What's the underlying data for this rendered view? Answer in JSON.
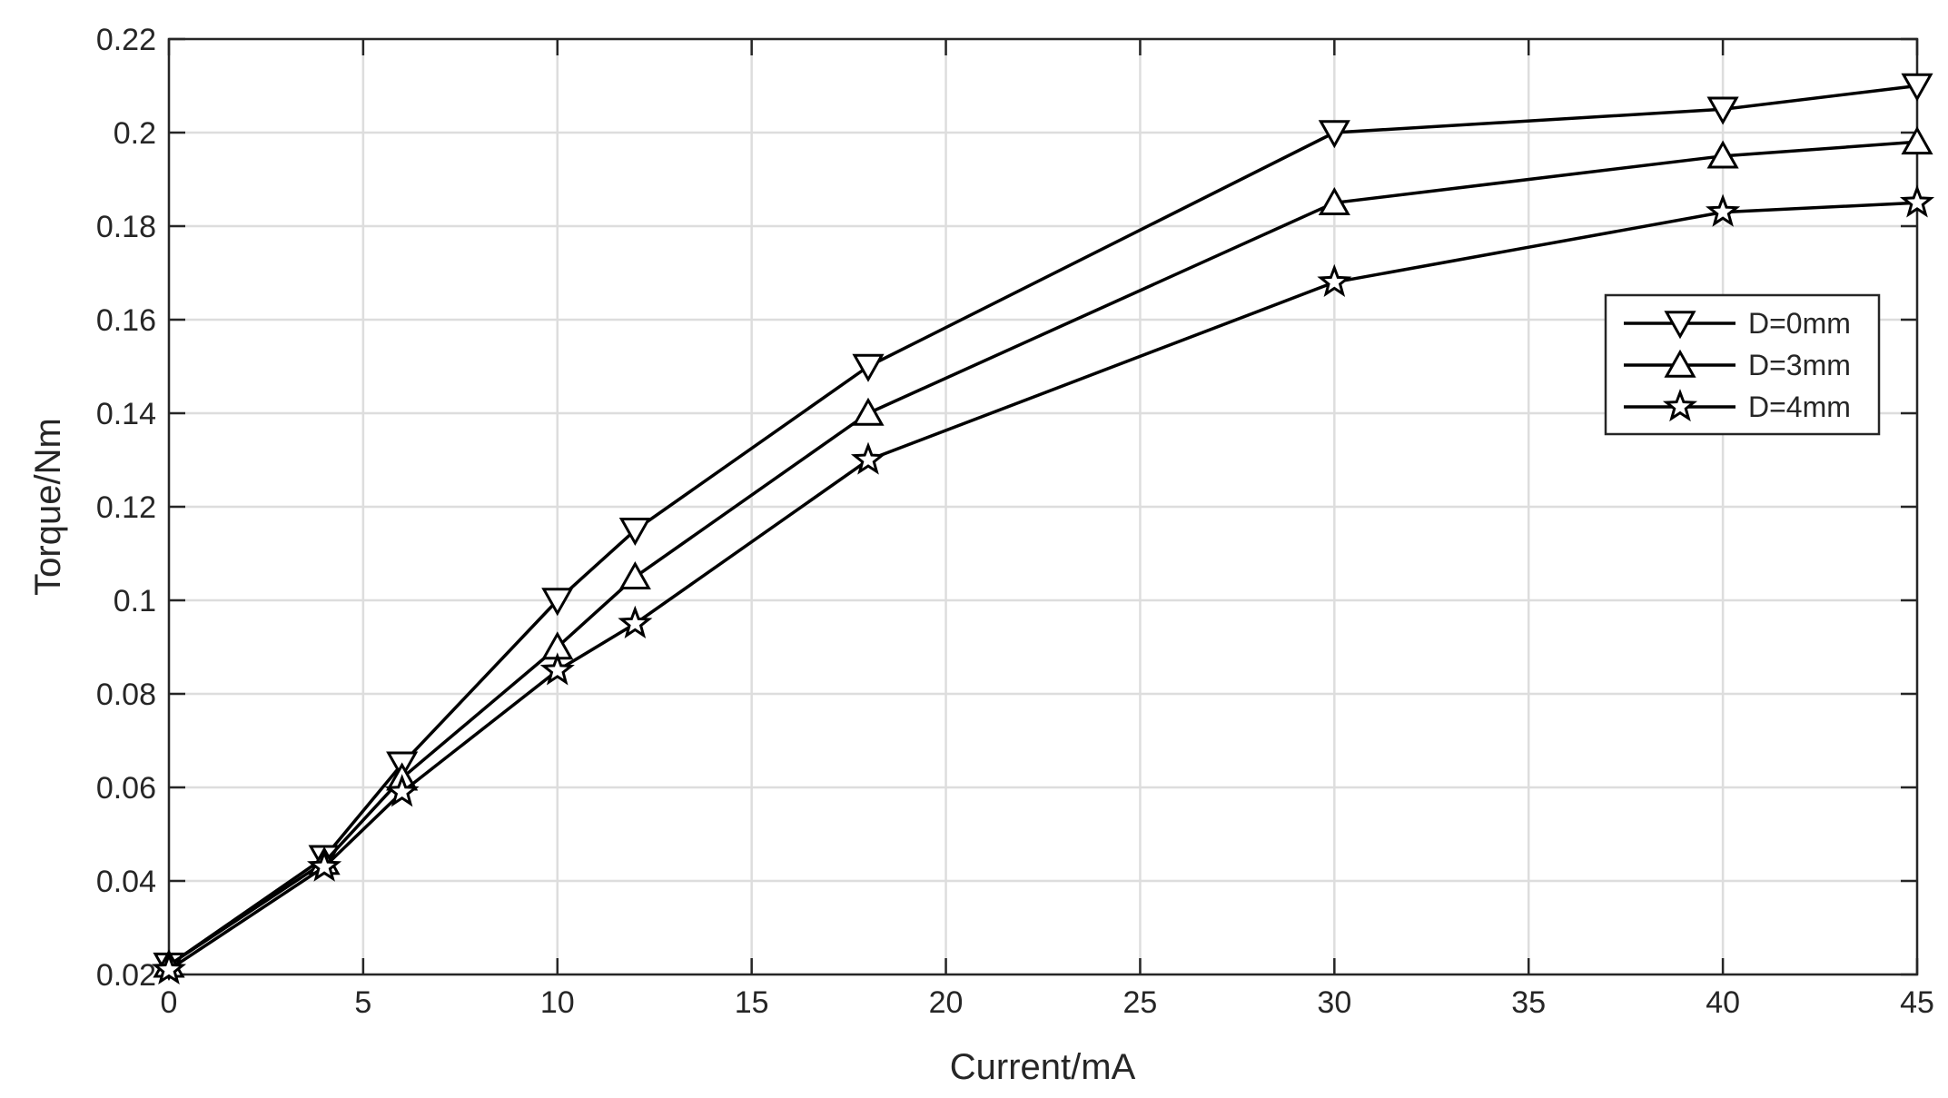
{
  "chart_data": {
    "type": "line",
    "xlabel": "Current/mA",
    "ylabel": "Torque/Nm",
    "xlim": [
      0,
      45
    ],
    "ylim": [
      0.02,
      0.22
    ],
    "xticks": [
      0,
      5,
      10,
      15,
      20,
      25,
      30,
      35,
      40,
      45
    ],
    "yticks": [
      0.02,
      0.04,
      0.06,
      0.08,
      0.1,
      0.12,
      0.14,
      0.16,
      0.18,
      0.2,
      0.22
    ],
    "xtick_labels": [
      "0",
      "5",
      "10",
      "15",
      "20",
      "25",
      "30",
      "35",
      "40",
      "45"
    ],
    "ytick_labels": [
      "0.02",
      "0.04",
      "0.06",
      "0.08",
      "0.1",
      "0.12",
      "0.14",
      "0.16",
      "0.18",
      "0.2",
      "0.22"
    ],
    "grid": true,
    "legend_position": "upper-right",
    "x": [
      0,
      4,
      6,
      10,
      12,
      18,
      30,
      40,
      45
    ],
    "series": [
      {
        "name": "D=0mm",
        "marker": "triangle-down",
        "color": "#000000",
        "values": [
          0.022,
          0.045,
          0.065,
          0.1,
          0.115,
          0.15,
          0.2,
          0.205,
          0.21
        ]
      },
      {
        "name": "D=3mm",
        "marker": "triangle-up",
        "color": "#000000",
        "values": [
          0.022,
          0.044,
          0.062,
          0.09,
          0.105,
          0.14,
          0.185,
          0.195,
          0.198
        ]
      },
      {
        "name": "D=4mm",
        "marker": "star",
        "color": "#000000",
        "values": [
          0.021,
          0.043,
          0.059,
          0.085,
          0.095,
          0.13,
          0.168,
          0.183,
          0.185
        ]
      }
    ]
  }
}
